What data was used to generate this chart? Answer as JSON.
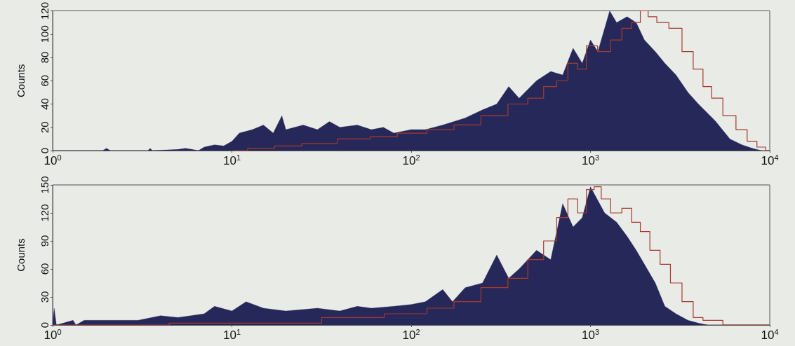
{
  "chart_data": [
    {
      "type": "area",
      "ylabel": "Counts",
      "xlim": [
        1,
        10000
      ],
      "xticks": [
        {
          "value": 1,
          "label": "10$^{0}$"
        },
        {
          "value": 10,
          "label": "10$^{1}$"
        },
        {
          "value": 100,
          "label": "10$^{2}$"
        },
        {
          "value": 1000,
          "label": "10$^{3}$"
        },
        {
          "value": 10000,
          "label": "10$^{4}$"
        }
      ],
      "log": "x",
      "ylim": [
        0,
        120
      ],
      "yticks": [
        0,
        20,
        40,
        60,
        80,
        100,
        120
      ],
      "grid": false,
      "series": [
        {
          "color": "#262859",
          "x": [
            1,
            1.9,
            2,
            2.1,
            3.4,
            3.5,
            3.6,
            5,
            5.5,
            6,
            6.5,
            7,
            8,
            9,
            10,
            11,
            13,
            15,
            17,
            19,
            20,
            25,
            30,
            35,
            40,
            50,
            60,
            70,
            80,
            100,
            120,
            150,
            200,
            250,
            300,
            350,
            400,
            500,
            600,
            700,
            800,
            900,
            1000,
            1100,
            1280,
            1400,
            1600,
            1800,
            2000,
            2300,
            2600,
            3000,
            3500,
            4000,
            5000,
            6000,
            7000,
            8000,
            9000
          ],
          "values": [
            0,
            0,
            2,
            0,
            0,
            2,
            0,
            1,
            2,
            1,
            0,
            3,
            5,
            4,
            8,
            15,
            18,
            22,
            15,
            30,
            18,
            22,
            18,
            25,
            20,
            22,
            18,
            20,
            15,
            18,
            18,
            22,
            28,
            35,
            40,
            55,
            45,
            60,
            68,
            65,
            88,
            75,
            95,
            85,
            120,
            110,
            115,
            110,
            95,
            85,
            75,
            65,
            50,
            40,
            25,
            10,
            5,
            2,
            0
          ]
        },
        {
          "type": "step",
          "color": "#a8392c",
          "x": [
            10,
            15,
            20,
            30,
            50,
            70,
            100,
            150,
            200,
            300,
            400,
            500,
            600,
            700,
            800,
            900,
            1000,
            1200,
            1400,
            1600,
            1800,
            2000,
            2200,
            2500,
            3000,
            3500,
            4000,
            4500,
            5000,
            6000,
            7000,
            8000,
            9000,
            10000
          ],
          "values": [
            0,
            2,
            4,
            6,
            10,
            12,
            15,
            18,
            22,
            30,
            40,
            45,
            55,
            60,
            75,
            70,
            90,
            85,
            95,
            105,
            110,
            120,
            115,
            110,
            105,
            85,
            70,
            55,
            45,
            30,
            18,
            8,
            3,
            0
          ]
        }
      ]
    },
    {
      "type": "area",
      "ylabel": "Counts",
      "xlim": [
        1,
        10000
      ],
      "xticks": [
        {
          "value": 1,
          "label": "10$^{0}$"
        },
        {
          "value": 10,
          "label": "10$^{1}$"
        },
        {
          "value": 100,
          "label": "10$^{2}$"
        },
        {
          "value": 1000,
          "label": "10$^{3}$"
        },
        {
          "value": 10000,
          "label": "10$^{4}$"
        }
      ],
      "log": "x",
      "ylim": [
        0,
        150
      ],
      "yticks": [
        0,
        30,
        60,
        90,
        120,
        150
      ],
      "grid": false,
      "series": [
        {
          "color": "#262859",
          "x": [
            1,
            1.02,
            1.05,
            1.3,
            1.35,
            1.5,
            2,
            3,
            4,
            5,
            7,
            8,
            10,
            12,
            15,
            20,
            30,
            40,
            50,
            60,
            80,
            100,
            120,
            150,
            170,
            200,
            250,
            300,
            350,
            400,
            500,
            600,
            700,
            800,
            900,
            1000,
            1200,
            1400,
            1600,
            1800,
            2000,
            2300,
            2600,
            3000,
            3500,
            4000,
            4500
          ],
          "values": [
            0,
            18,
            0,
            5,
            0,
            5,
            5,
            5,
            10,
            8,
            12,
            20,
            15,
            25,
            18,
            15,
            18,
            15,
            20,
            18,
            20,
            22,
            25,
            38,
            25,
            40,
            45,
            75,
            50,
            60,
            80,
            70,
            130,
            105,
            115,
            148,
            120,
            110,
            95,
            80,
            65,
            45,
            20,
            12,
            5,
            2,
            0
          ]
        },
        {
          "type": "step",
          "color": "#a8392c",
          "x": [
            1,
            20,
            50,
            100,
            150,
            200,
            300,
            400,
            500,
            600,
            700,
            800,
            900,
            1000,
            1100,
            1200,
            1400,
            1600,
            1800,
            2000,
            2300,
            2600,
            3000,
            3500,
            4000,
            4500,
            5000,
            6000,
            10000
          ],
          "values": [
            0,
            2,
            8,
            12,
            18,
            25,
            40,
            50,
            70,
            90,
            115,
            135,
            120,
            145,
            148,
            135,
            120,
            125,
            110,
            100,
            80,
            65,
            45,
            25,
            8,
            5,
            5,
            0,
            0
          ]
        }
      ]
    }
  ]
}
